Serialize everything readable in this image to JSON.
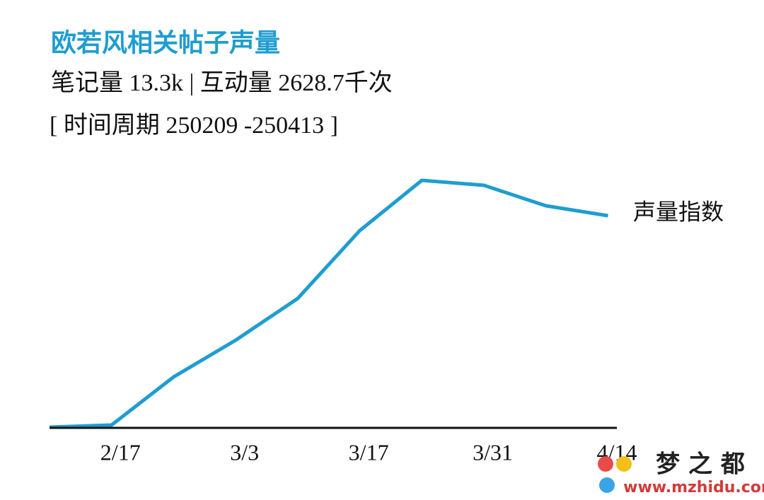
{
  "chart_data": {
    "type": "line",
    "title": "欧若风相关帖子声量",
    "subtitle": "笔记量 13.3k |  互动量 2628.7千次",
    "period": "[ 时间周期 250209 -250413 ]",
    "x": [
      "2/9",
      "2/16",
      "2/23",
      "3/2",
      "3/9",
      "3/16",
      "3/23",
      "3/30",
      "4/6",
      "4/13"
    ],
    "series": [
      {
        "name": "声量指数",
        "color": "#1f9dd0",
        "values": [
          1,
          4,
          72,
          124,
          183,
          279,
          350,
          343,
          314,
          300
        ]
      }
    ],
    "xlim": [
      "2/9",
      "4/14"
    ],
    "xticks": [
      "2/17",
      "3/3",
      "3/17",
      "3/31",
      "4/14"
    ],
    "ylim": [
      0,
      350
    ],
    "grid": false,
    "watermark": {
      "name": "梦 之 都",
      "url": "www.mzhidu.com"
    }
  }
}
